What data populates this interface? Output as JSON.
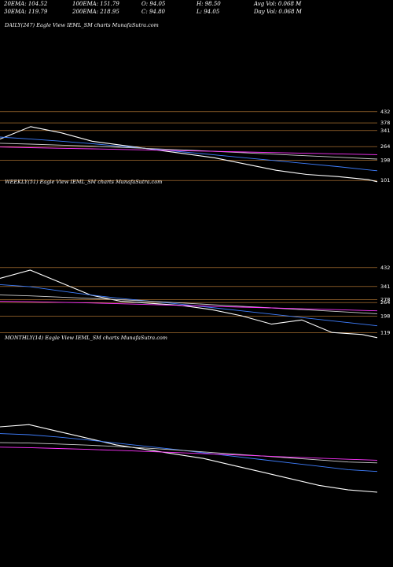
{
  "header": {
    "row1": [
      {
        "label": "20EMA: 104.52"
      },
      {
        "label": "100EMA: 151.79"
      },
      {
        "label": "O: 94.05"
      },
      {
        "label": "H: 98.50"
      },
      {
        "label": "Avg Vol: 0.068 M"
      }
    ],
    "row2": [
      {
        "label": "30EMA: 119.79"
      },
      {
        "label": "200EMA: 218.95"
      },
      {
        "label": "C: 94.80"
      },
      {
        "label": "L: 94.05"
      },
      {
        "label": "Day Vol: 0.068 M"
      }
    ]
  },
  "colors": {
    "price": "#ffffff",
    "ema_blue": "#3f7fff",
    "ema_white": "#cfcfcf",
    "ema_magenta": "#ff33ff",
    "level": "#c8853a"
  },
  "chart_data": [
    {
      "type": "line",
      "title": "DAILY(247) Eagle   View  IEML_SM charts MunafaSutra.com",
      "right_tick_labels": [
        "432",
        "378",
        "341",
        "264",
        "198",
        "101"
      ],
      "level_values": [
        432,
        378,
        341,
        264,
        198,
        101
      ],
      "ylim": [
        60,
        560
      ],
      "x": [
        0,
        20,
        40,
        60,
        80,
        100,
        120,
        140,
        160,
        180,
        200,
        220,
        240,
        246
      ],
      "series": [
        {
          "values": [
            300,
            360,
            330,
            290,
            270,
            250,
            230,
            210,
            180,
            150,
            130,
            120,
            105,
            95
          ]
        },
        {
          "values": [
            310,
            300,
            290,
            278,
            265,
            252,
            238,
            224,
            210,
            196,
            182,
            168,
            152,
            148
          ]
        },
        {
          "values": [
            280,
            276,
            271,
            266,
            260,
            254,
            248,
            241,
            234,
            227,
            220,
            213,
            206,
            204
          ]
        },
        {
          "values": [
            262,
            259,
            256,
            253,
            250,
            247,
            244,
            241,
            238,
            235,
            232,
            229,
            226,
            225
          ]
        }
      ]
    },
    {
      "type": "line",
      "title": "WEEKLY(51) Eagle   View  IEML_SM charts MunafaSutra.com",
      "right_tick_labels": [
        "432",
        "341",
        "278",
        "264",
        "198",
        "119"
      ],
      "level_values": [
        432,
        341,
        278,
        264,
        198,
        119
      ],
      "ylim": [
        60,
        560
      ],
      "x": [
        0,
        4,
        8,
        12,
        16,
        20,
        24,
        28,
        32,
        36,
        40,
        44,
        48,
        50
      ],
      "series": [
        {
          "values": [
            380,
            420,
            360,
            300,
            270,
            260,
            250,
            230,
            200,
            160,
            180,
            120,
            110,
            95
          ]
        },
        {
          "values": [
            350,
            340,
            320,
            300,
            284,
            270,
            256,
            240,
            224,
            208,
            192,
            176,
            160,
            152
          ]
        },
        {
          "values": [
            300,
            296,
            290,
            284,
            277,
            270,
            262,
            254,
            246,
            238,
            230,
            222,
            214,
            210
          ]
        },
        {
          "values": [
            270,
            268,
            265,
            262,
            258,
            254,
            250,
            246,
            242,
            238,
            234,
            230,
            226,
            224
          ]
        }
      ]
    },
    {
      "type": "line",
      "title": "MONTHLY(14) Eagle   View  IEML_SM charts MunafaSutra.com",
      "right_tick_labels": [],
      "level_values": [],
      "ylim": [
        60,
        560
      ],
      "x": [
        0,
        1,
        2,
        3,
        4,
        5,
        6,
        7,
        8,
        9,
        10,
        11,
        12,
        13
      ],
      "series": [
        {
          "values": [
            420,
            430,
            400,
            370,
            340,
            320,
            300,
            280,
            250,
            220,
            190,
            160,
            140,
            130
          ]
        },
        {
          "values": [
            390,
            385,
            375,
            362,
            348,
            334,
            320,
            305,
            290,
            275,
            260,
            245,
            230,
            222
          ]
        },
        {
          "values": [
            350,
            348,
            344,
            339,
            333,
            326,
            318,
            309,
            300,
            291,
            282,
            273,
            264,
            260
          ]
        },
        {
          "values": [
            330,
            328,
            324,
            320,
            316,
            311,
            306,
            301,
            296,
            291,
            286,
            281,
            276,
            272
          ]
        }
      ]
    }
  ]
}
